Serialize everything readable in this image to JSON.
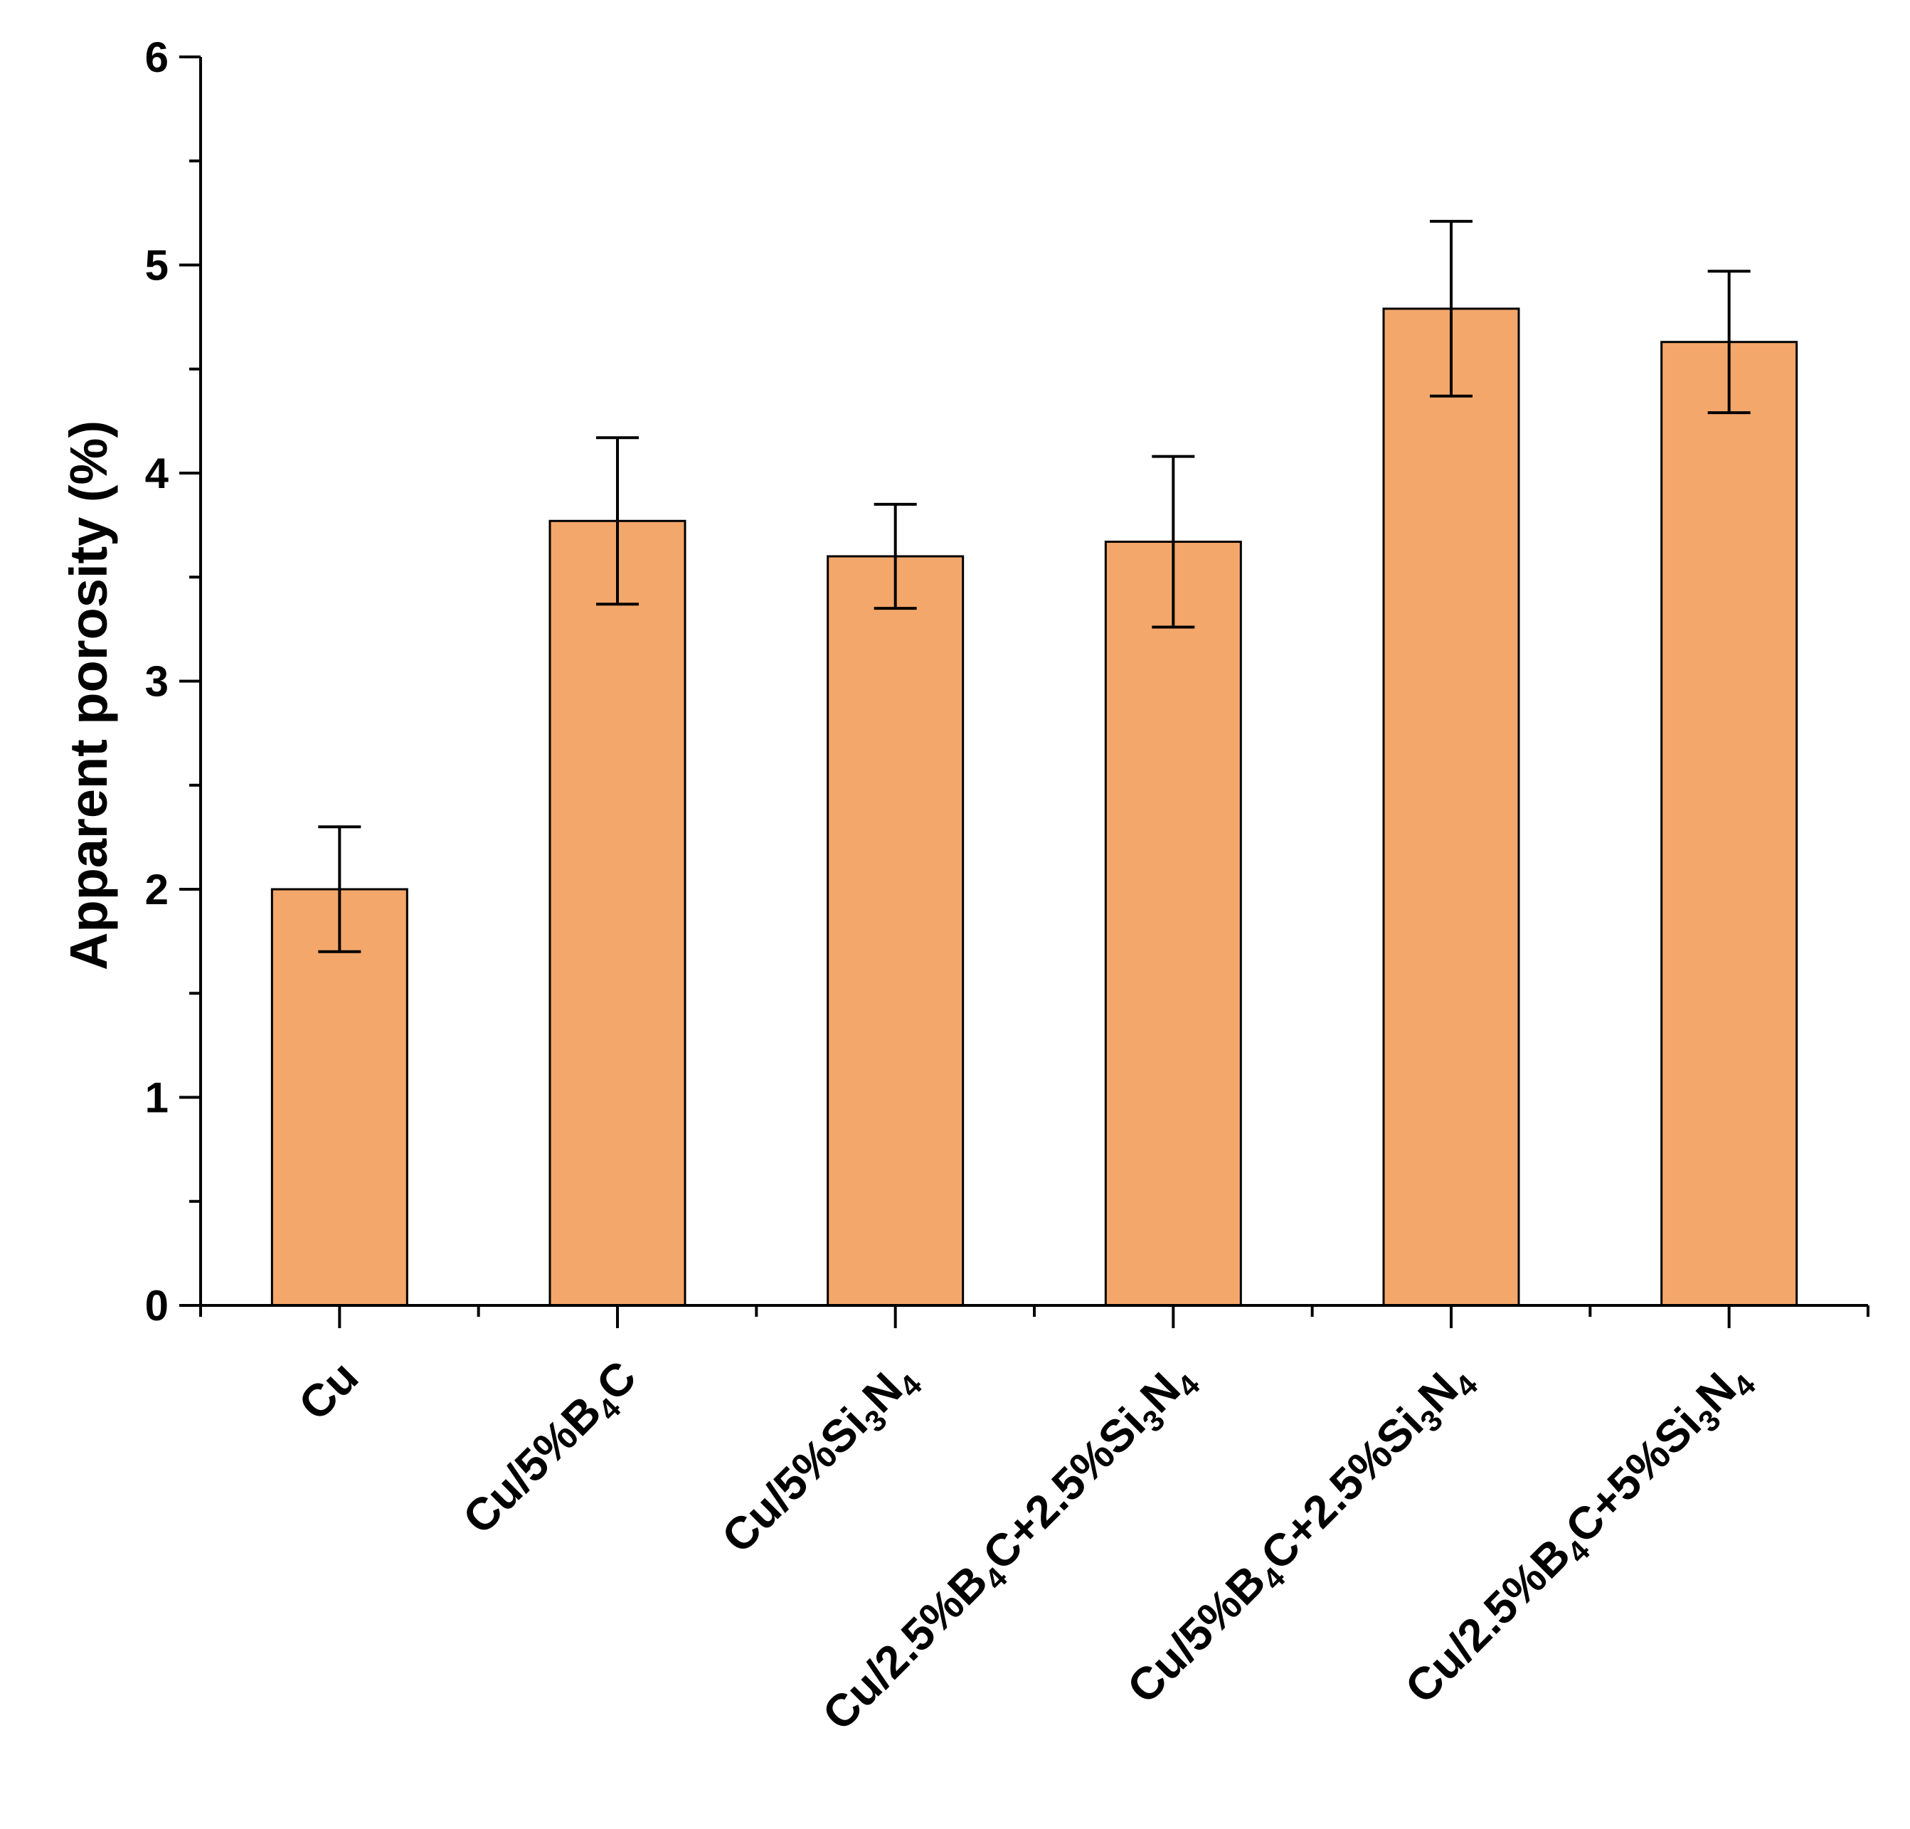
{
  "chart_data": {
    "type": "bar",
    "title": "",
    "xlabel": "",
    "ylabel": "Apparent porosity (%)",
    "ylim": [
      0,
      6
    ],
    "yticks": [
      0,
      1,
      2,
      3,
      4,
      5,
      6
    ],
    "bar_color": "#f4a76a",
    "grid": false,
    "legend": "none",
    "categories": [
      "Cu",
      "Cu/5%B4C",
      "Cu/5%Si3N4",
      "Cu/2.5%B4C+2.5%Si3N4",
      "Cu/5%B4C+2.5%Si3N4",
      "Cu/2.5%B4C+5%Si3N4"
    ],
    "values": [
      2.0,
      3.77,
      3.6,
      3.67,
      4.79,
      4.63
    ],
    "errors": [
      0.3,
      0.4,
      0.25,
      0.41,
      0.42,
      0.34
    ]
  }
}
